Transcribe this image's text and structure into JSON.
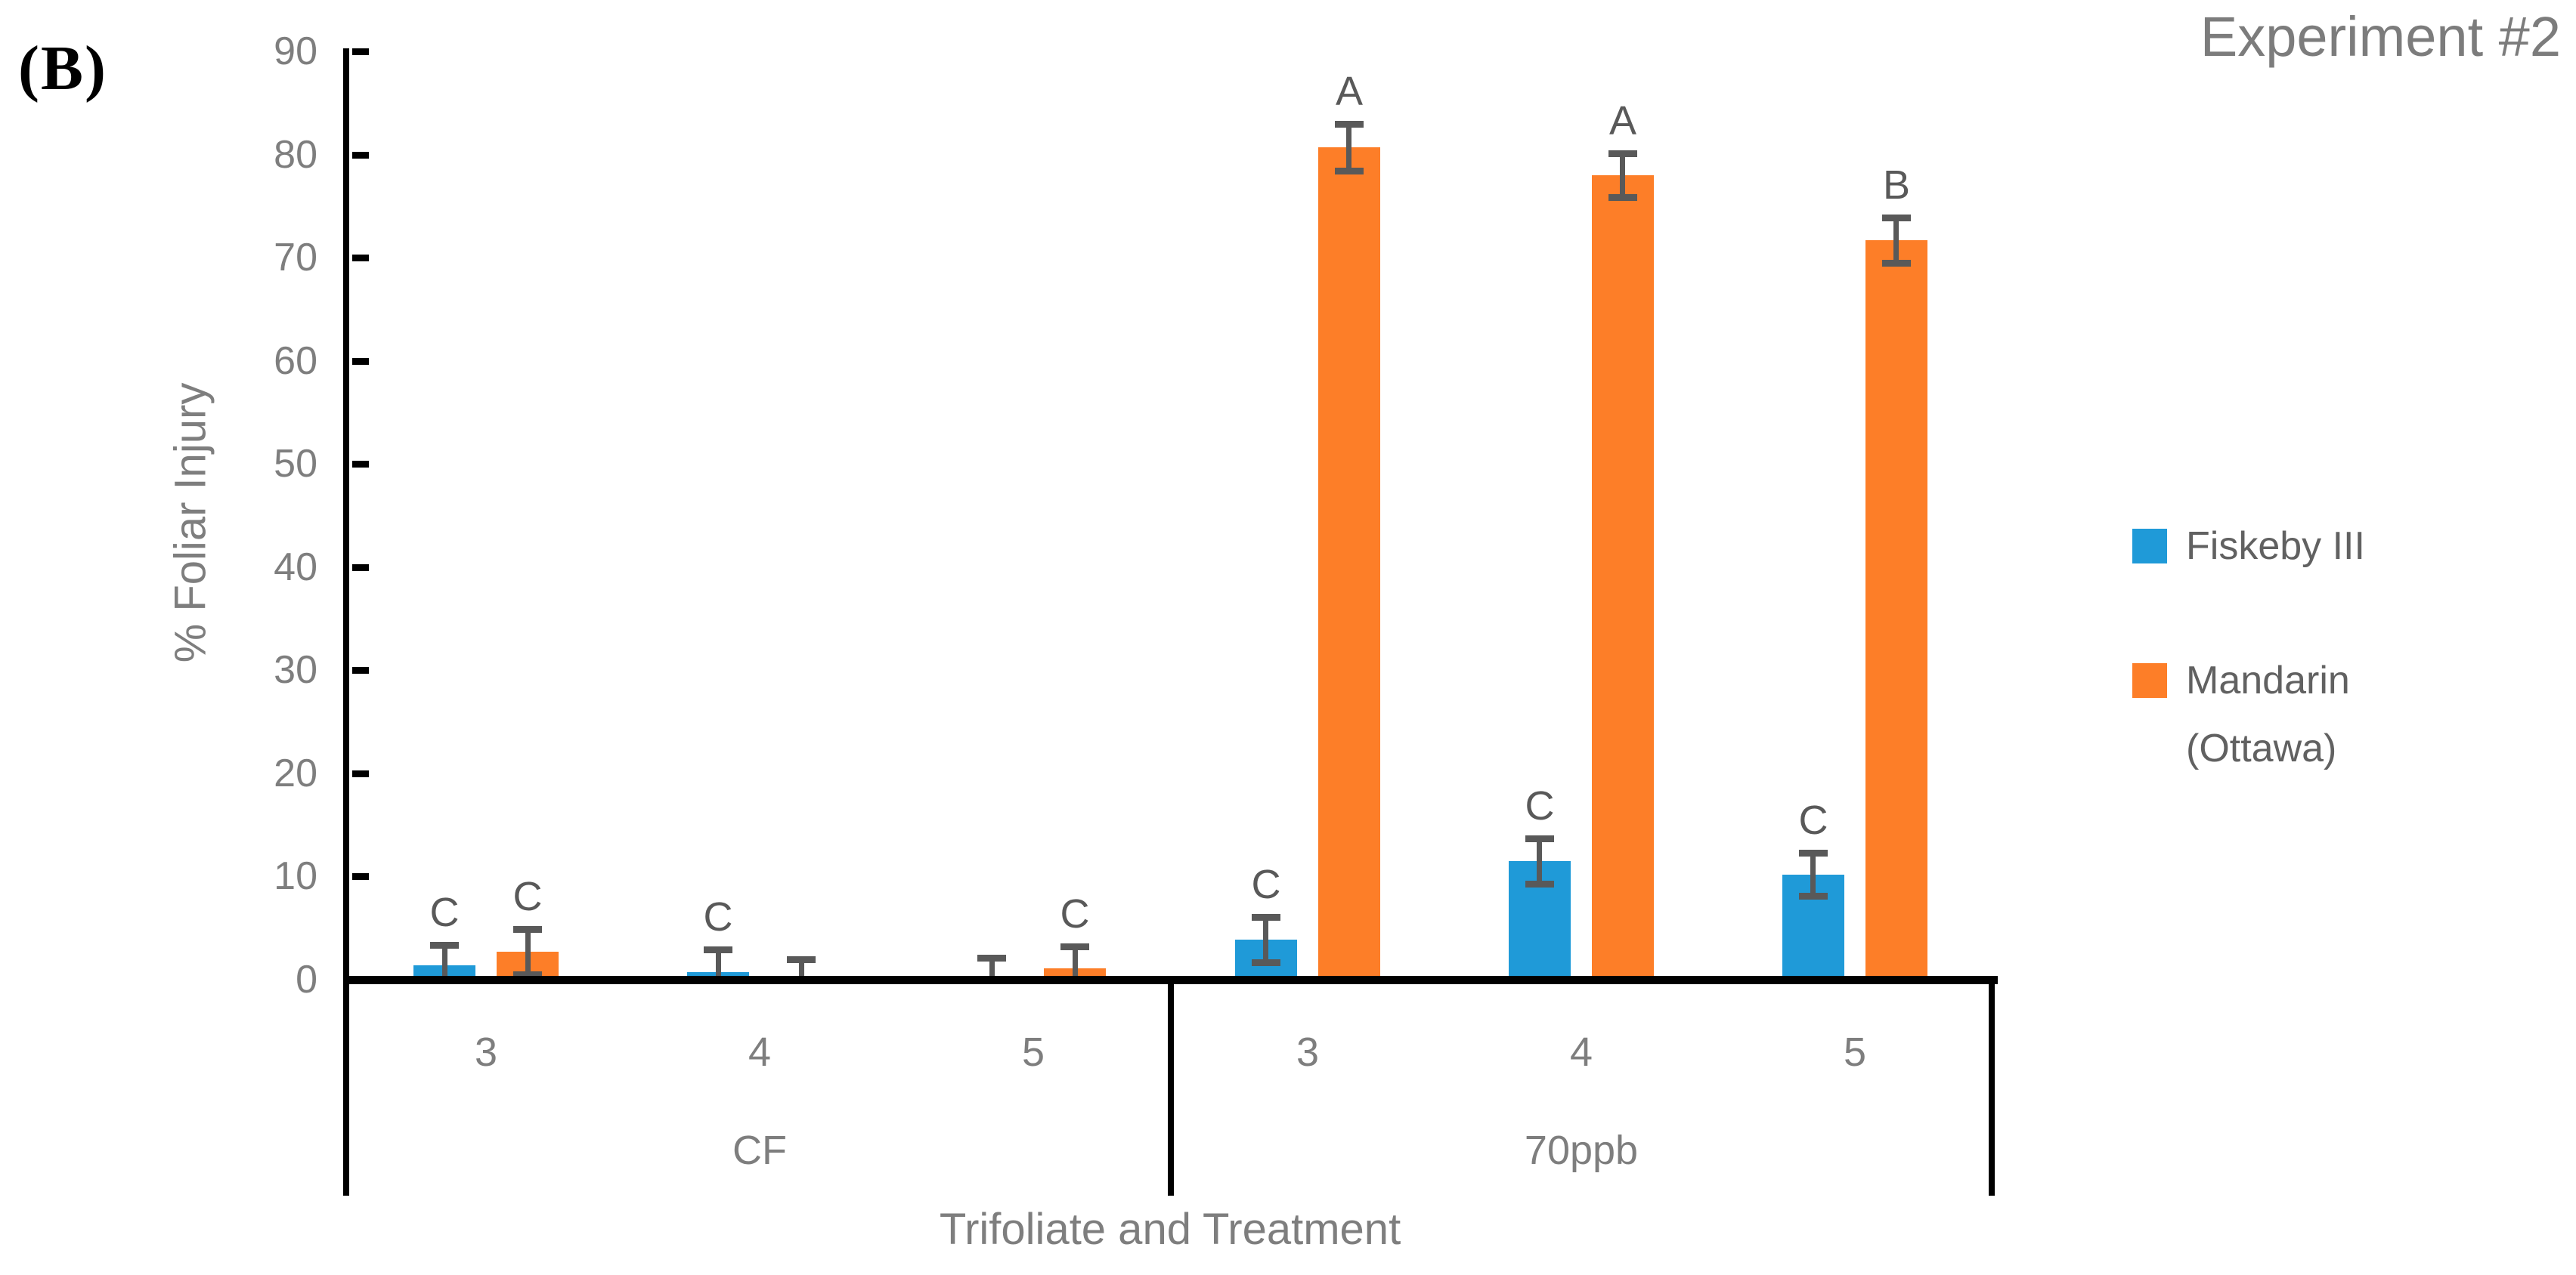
{
  "panel_label": "(B)",
  "title": "Experiment #2",
  "legend": {
    "position": "right",
    "items": [
      {
        "label": "Fiskeby III",
        "color": "#1F9AD8"
      },
      {
        "label": "Mandarin (Ottawa)",
        "color": "#FD7E28"
      }
    ]
  },
  "chart_data": {
    "type": "bar",
    "title": "Experiment #2",
    "xlabel": "Trifoliate and Treatment",
    "ylabel": "% Foliar Injury",
    "ylim": [
      0,
      90
    ],
    "ytick_step": 10,
    "yticks": [
      0,
      10,
      20,
      30,
      40,
      50,
      60,
      70,
      80,
      90
    ],
    "grid": false,
    "legend_position": "right",
    "error_bar_color": "#595959",
    "letter_color": "#595959",
    "groups": [
      {
        "label": "CF",
        "categories": [
          "3",
          "4",
          "5"
        ]
      },
      {
        "label": "70ppb",
        "categories": [
          "3",
          "4",
          "5"
        ]
      }
    ],
    "series": [
      {
        "name": "Fiskeby III",
        "color": "#1F9AD8",
        "values": [
          1.4,
          0.7,
          0,
          3.9,
          11.5,
          10.2
        ],
        "errors": [
          2.0,
          2.2,
          2.1,
          2.2,
          2.2,
          2.1
        ],
        "letters": [
          "C",
          "C",
          "",
          "C",
          "C",
          "C"
        ]
      },
      {
        "name": "Mandarin (Ottawa)",
        "color": "#FD7E28",
        "values": [
          2.7,
          0,
          1.1,
          80.7,
          78.0,
          71.7
        ],
        "errors": [
          2.2,
          2.0,
          2.1,
          2.3,
          2.1,
          2.2
        ],
        "letters": [
          "C",
          "",
          "C",
          "A",
          "A",
          "B"
        ]
      }
    ]
  }
}
